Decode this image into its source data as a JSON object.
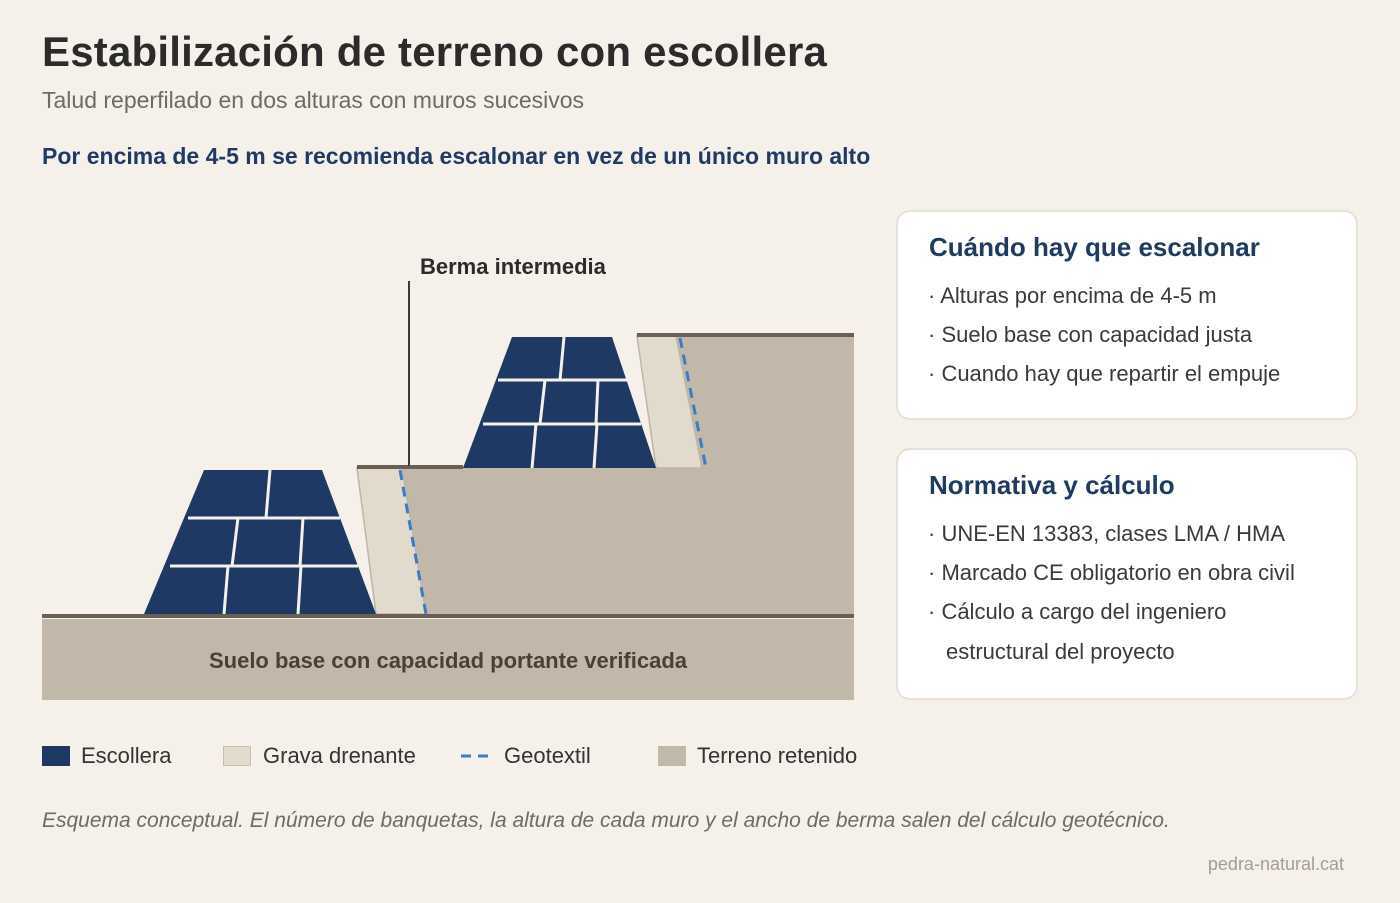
{
  "header": {
    "title": "Estabilización de terreno con escollera",
    "subtitle": "Talud reperfilado en dos alturas con muros sucesivos",
    "headline": "Por encima de 4-5 m se recomienda escalonar en vez de un único muro alto"
  },
  "diagram": {
    "berm_label": "Berma intermedia",
    "base_label": "Suelo base con capacidad portante verificada"
  },
  "cards": [
    {
      "title": "Cuándo hay que escalonar",
      "items": [
        "· Alturas por encima de 4-5 m",
        "· Suelo base con capacidad justa",
        "· Cuando hay que repartir el empuje"
      ]
    },
    {
      "title": "Normativa y cálculo",
      "items": [
        "· UNE-EN 13383, clases LMA / HMA",
        "· Marcado CE obligatorio en obra civil",
        "· Cálculo a cargo del ingeniero",
        "estructural del proyecto"
      ]
    }
  ],
  "legend": [
    {
      "label": "Escollera",
      "color": "#1e3a64"
    },
    {
      "label": "Grava drenante",
      "color": "#e2dbcd"
    },
    {
      "label": "Geotextil",
      "color": "#3d7cc4"
    },
    {
      "label": "Terreno retenido",
      "color": "#c2b8aa"
    }
  ],
  "colors": {
    "escollera": "#1e3a64",
    "grava": "#e2dbcd",
    "geotextil": "#3d7cc4",
    "terreno": "#c2b8aa",
    "ground_line": "#6b5e52",
    "accent": "#1f3a63"
  },
  "footnote": "Esquema conceptual. El número de banquetas, la altura de cada muro y el ancho de berma salen del cálculo geotécnico.",
  "credit": "pedra-natural.cat"
}
